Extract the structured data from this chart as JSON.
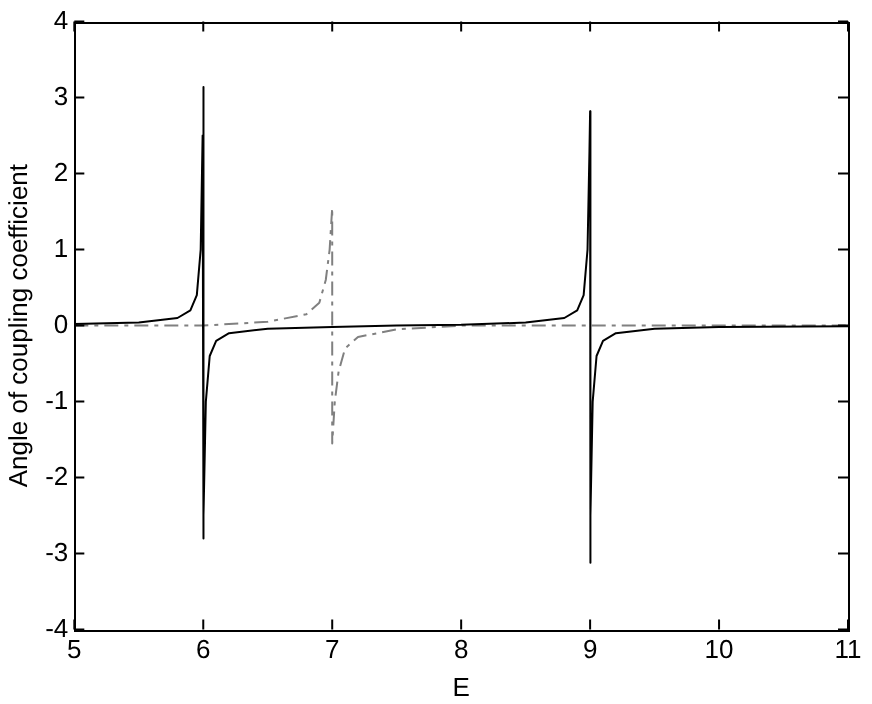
{
  "chart_data": {
    "type": "line",
    "xlabel": "E",
    "ylabel": "Angle of coupling coefficient",
    "xlim": [
      5,
      11
    ],
    "xticks": [
      5,
      6,
      7,
      8,
      9,
      10,
      11
    ],
    "ylim": [
      -4,
      4
    ],
    "yticks": [
      -4,
      -3,
      -2,
      -1,
      0,
      1,
      2,
      3,
      4
    ],
    "grid": false,
    "legend": false,
    "marker": "none",
    "series": [
      {
        "color": "#000000",
        "line_style": "solid",
        "x": [
          5,
          5.5,
          5.8,
          5.9,
          5.95,
          5.98,
          5.995,
          6,
          6,
          6.005,
          6.02,
          6.05,
          6.1,
          6.2,
          6.5,
          7,
          7.5,
          8,
          8.5,
          8.8,
          8.9,
          8.95,
          8.98,
          8.995,
          9,
          9,
          9.005,
          9.02,
          9.05,
          9.1,
          9.2,
          9.5,
          10,
          11
        ],
        "values": [
          0.02,
          0.04,
          0.1,
          0.2,
          0.4,
          1.0,
          2.5,
          3.14,
          -2.8,
          -2.5,
          -1.0,
          -0.4,
          -0.2,
          -0.1,
          -0.04,
          -0.02,
          0,
          0.01,
          0.04,
          0.1,
          0.2,
          0.4,
          1.0,
          2.3,
          2.82,
          -3.12,
          -2.5,
          -1.0,
          -0.4,
          -0.2,
          -0.1,
          -0.04,
          -0.02,
          -0.01
        ]
      },
      {
        "color": "#808080",
        "line_style": "dashed",
        "x": [
          5,
          6,
          6.5,
          6.8,
          6.9,
          6.95,
          6.98,
          7,
          7,
          7.02,
          7.05,
          7.1,
          7.2,
          7.5,
          8,
          11
        ],
        "values": [
          0,
          0,
          0.05,
          0.15,
          0.3,
          0.6,
          1.0,
          1.55,
          -1.55,
          -1.0,
          -0.6,
          -0.3,
          -0.15,
          -0.05,
          0,
          0
        ]
      }
    ]
  }
}
